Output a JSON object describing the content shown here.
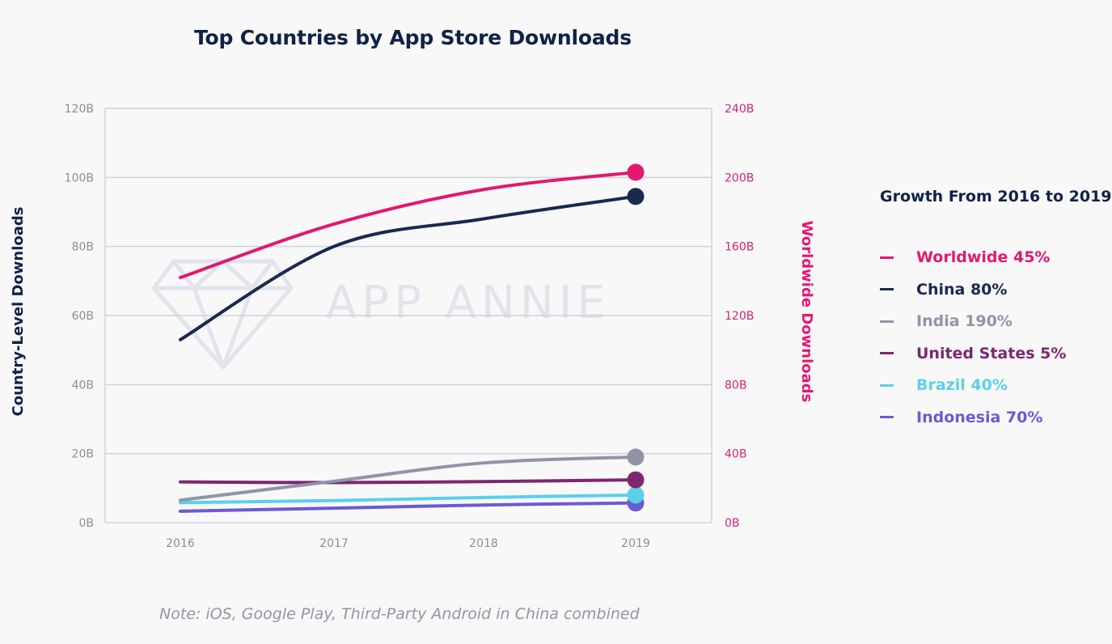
{
  "chart_data": {
    "type": "line",
    "title": "Top Countries by App Store Downloads",
    "x": [
      "2016",
      "2017",
      "2018",
      "2019"
    ],
    "y_left": {
      "label": "Country-Level Downloads",
      "range": [
        0,
        120
      ],
      "ticks": [
        "0B",
        "20B",
        "40B",
        "60B",
        "80B",
        "100B",
        "120B"
      ]
    },
    "y_right": {
      "label": "Worldwide Downloads",
      "range": [
        0,
        240
      ],
      "ticks": [
        "0B",
        "40B",
        "80B",
        "120B",
        "160B",
        "200B",
        "240B"
      ]
    },
    "series": [
      {
        "name": "Worldwide",
        "axis": "right",
        "color": "#e3186e",
        "values": [
          142,
          173,
          193,
          203
        ]
      },
      {
        "name": "China",
        "axis": "left",
        "color": "#19294f",
        "values": [
          53,
          80,
          88,
          94.5
        ]
      },
      {
        "name": "India",
        "axis": "left",
        "color": "#8e95a6",
        "values": [
          6.5,
          12,
          17.3,
          19
        ]
      },
      {
        "name": "United States",
        "axis": "left",
        "color": "#7e2670",
        "values": [
          11.8,
          11.6,
          11.9,
          12.4
        ]
      },
      {
        "name": "Brazil",
        "axis": "left",
        "color": "#5bd0ea",
        "values": [
          5.8,
          6.4,
          7.3,
          8
        ]
      },
      {
        "name": "Indonesia",
        "axis": "left",
        "color": "#6a5bd2",
        "values": [
          3.3,
          4.2,
          5.1,
          5.7
        ]
      }
    ],
    "grid": true,
    "legend_position": "right"
  },
  "legend": {
    "title": "Growth From 2016 to 2019",
    "items": [
      {
        "label": "Worldwide 45%",
        "color": "#e3186e"
      },
      {
        "label": "China 80%",
        "color": "#19294f"
      },
      {
        "label": "India 190%",
        "color": "#8e95a6"
      },
      {
        "label": "United States 5%",
        "color": "#7e2670"
      },
      {
        "label": "Brazil 40%",
        "color": "#5bd0ea"
      },
      {
        "label": "Indonesia 70%",
        "color": "#6a5bd2"
      }
    ]
  },
  "watermark": {
    "text": "APP ANNIE",
    "icon": "diamond-icon"
  },
  "footnote": "Note: iOS, Google Play, Third-Party Android in China combined"
}
